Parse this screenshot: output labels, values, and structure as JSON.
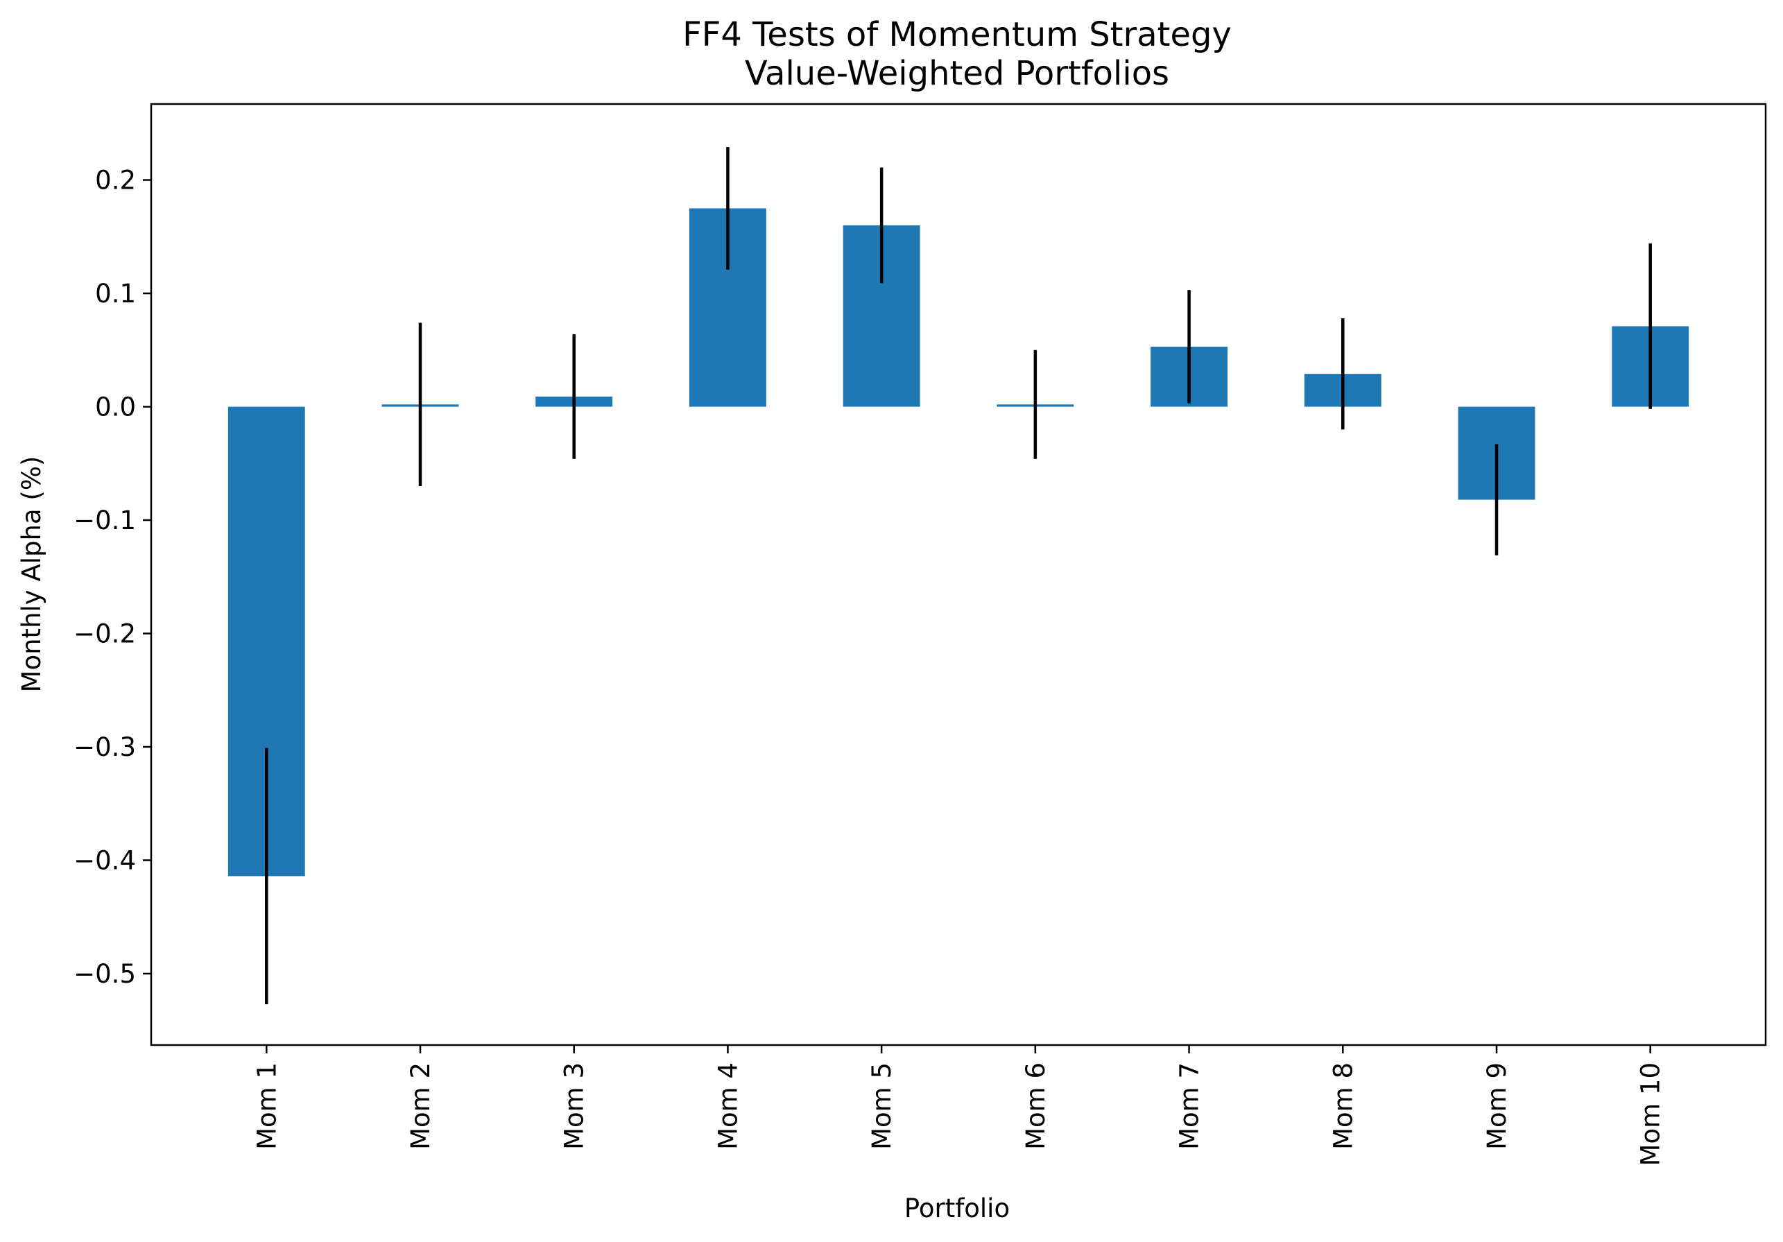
{
  "chart_data": {
    "type": "bar",
    "title": [
      "FF4 Tests of Momentum Strategy",
      "Value-Weighted Portfolios"
    ],
    "xlabel": "Portfolio",
    "ylabel": "Monthly Alpha (%)",
    "categories": [
      "Mom 1",
      "Mom 2",
      "Mom 3",
      "Mom 4",
      "Mom 5",
      "Mom 6",
      "Mom 7",
      "Mom 8",
      "Mom 9",
      "Mom 10"
    ],
    "values": [
      -0.414,
      0.002,
      0.009,
      0.175,
      0.16,
      0.002,
      0.053,
      0.029,
      -0.082,
      0.071
    ],
    "error": [
      0.113,
      0.072,
      0.055,
      0.054,
      0.051,
      0.048,
      0.05,
      0.049,
      0.049,
      0.073
    ],
    "ylim": [
      -0.563,
      0.267
    ],
    "yticks": [
      0.2,
      0.1,
      0.0,
      -0.1,
      -0.2,
      -0.3,
      -0.4,
      -0.5
    ],
    "ytick_labels": [
      "0.2",
      "0.1",
      "0.0",
      "−0.1",
      "−0.2",
      "−0.3",
      "−0.4",
      "−0.5"
    ],
    "bar_color": "#1f77b4",
    "error_color": "#000000",
    "grid": false,
    "legend": "none"
  }
}
